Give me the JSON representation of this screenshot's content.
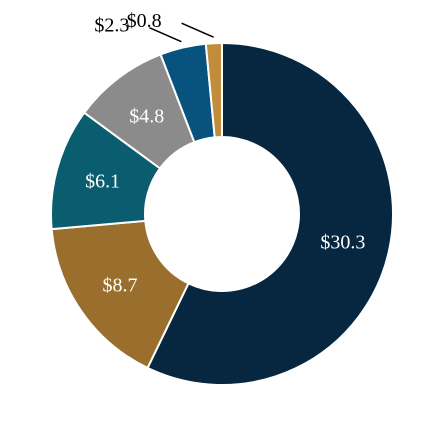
{
  "chart_data": {
    "type": "pie",
    "donut": true,
    "title": "",
    "legend": "none",
    "slices": [
      {
        "label": "$30.3",
        "value": 30.3,
        "color": "#06273f"
      },
      {
        "label": "$8.7",
        "value": 8.7,
        "color": "#9a6e2c"
      },
      {
        "label": "$6.1",
        "value": 6.1,
        "color": "#0a5d6f"
      },
      {
        "label": "$4.8",
        "value": 4.8,
        "color": "#8b8b8b"
      },
      {
        "label": "$2.3",
        "value": 2.3,
        "color": "#08527e"
      },
      {
        "label": "$0.8",
        "value": 0.8,
        "color": "#bf8d3c"
      }
    ]
  }
}
